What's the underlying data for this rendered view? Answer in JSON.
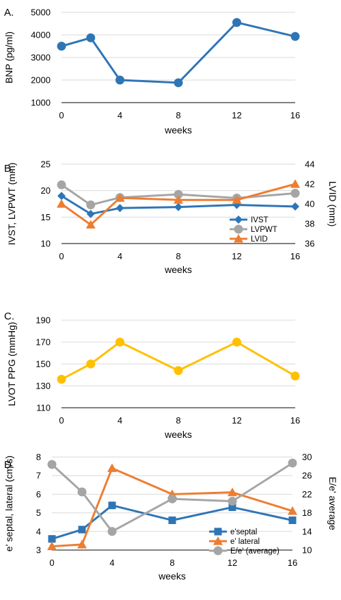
{
  "chart_data": [
    {
      "panel": "A.",
      "type": "line",
      "x": [
        0,
        2,
        4,
        8,
        12,
        16
      ],
      "xticks": [
        0,
        4,
        8,
        12,
        16
      ],
      "xlabel": "weeks",
      "ylabel": "BNP (pg/ml)",
      "ylim": [
        1000,
        5000
      ],
      "yticks": [
        1000,
        2000,
        3000,
        4000,
        5000
      ],
      "grid": true,
      "legend": "none",
      "series": [
        {
          "values": [
            3500,
            3870,
            2000,
            1880,
            4550,
            3930
          ],
          "color": "#2e75b6",
          "marker": "circle"
        }
      ]
    },
    {
      "panel": "B.",
      "type": "line",
      "x": [
        0,
        2,
        4,
        8,
        12,
        16
      ],
      "xticks": [
        0,
        4,
        8,
        12,
        16
      ],
      "xlabel": "weeks",
      "ylabel": "IVST, LVPWT (mm)",
      "ylabel_right": "LVID (mm)",
      "ylim": [
        10,
        25
      ],
      "yticks": [
        10,
        15,
        20,
        25
      ],
      "ylim_right": [
        36,
        44
      ],
      "yticks_right": [
        36,
        38,
        40,
        42,
        44
      ],
      "grid": true,
      "legend": "bottom-right",
      "series": [
        {
          "name": "IVST",
          "axis": "left",
          "values": [
            19.0,
            15.6,
            16.7,
            16.9,
            17.3,
            17.0
          ],
          "color": "#2e75b6",
          "marker": "diamond"
        },
        {
          "name": "LVPWT",
          "axis": "left",
          "values": [
            21.1,
            17.3,
            18.7,
            19.3,
            18.6,
            19.5
          ],
          "color": "#a5a5a5",
          "marker": "circle"
        },
        {
          "name": "LVID",
          "axis": "right",
          "values": [
            40.0,
            37.9,
            40.6,
            40.4,
            40.4,
            42.0
          ],
          "color": "#ed7d31",
          "marker": "triangle"
        }
      ]
    },
    {
      "panel": "C.",
      "type": "line",
      "x": [
        0,
        2,
        4,
        8,
        12,
        16
      ],
      "xticks": [
        0,
        4,
        8,
        12,
        16
      ],
      "xlabel": "weeks",
      "ylabel": "LVOT PPG (mmHg)",
      "ylim": [
        110,
        190
      ],
      "yticks": [
        110,
        130,
        150,
        170,
        190
      ],
      "grid": true,
      "legend": "none",
      "series": [
        {
          "values": [
            136,
            150,
            170,
            144,
            170,
            139
          ],
          "color": "#ffc000",
          "marker": "circle"
        }
      ]
    },
    {
      "panel": "D.",
      "type": "line",
      "x": [
        0,
        2,
        4,
        8,
        12,
        16
      ],
      "xticks": [
        0,
        4,
        8,
        12,
        16
      ],
      "xlabel": "weeks",
      "ylabel": "e' septal,  lateral (cm/s)",
      "ylabel_right": "E/e' average",
      "ylim": [
        3,
        8
      ],
      "yticks": [
        3,
        4,
        5,
        6,
        7,
        8
      ],
      "ylim_right": [
        10,
        30
      ],
      "yticks_right": [
        10,
        14,
        18,
        22,
        26,
        30
      ],
      "grid": true,
      "legend": "bottom-right",
      "series": [
        {
          "name": "e'septal",
          "axis": "left",
          "values": [
            3.6,
            4.1,
            5.4,
            4.6,
            5.3,
            4.6
          ],
          "color": "#2e75b6",
          "marker": "square"
        },
        {
          "name": "e' lateral",
          "axis": "left",
          "values": [
            3.2,
            3.3,
            7.4,
            6.0,
            6.1,
            5.1
          ],
          "color": "#ed7d31",
          "marker": "triangle"
        },
        {
          "name": "E/e' (average)",
          "axis": "right",
          "values": [
            28.4,
            22.5,
            14.0,
            21.0,
            20.5,
            28.7
          ],
          "color": "#a5a5a5",
          "marker": "circle"
        }
      ]
    }
  ]
}
